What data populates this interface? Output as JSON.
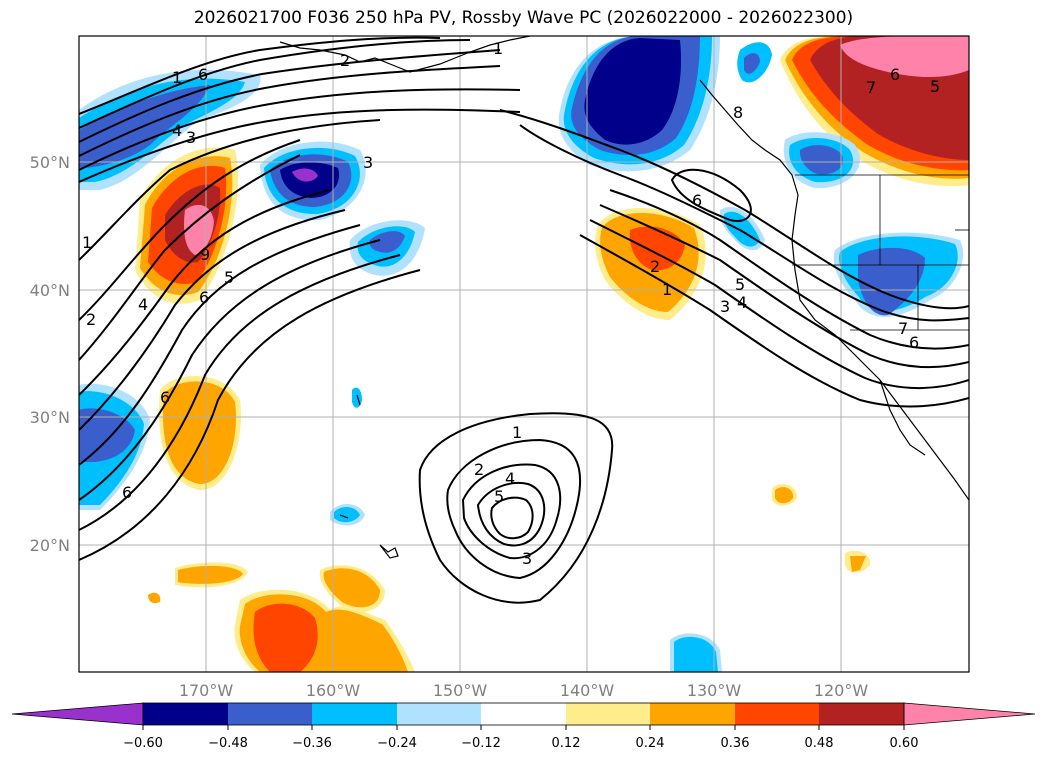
{
  "title": "2026021700 F036 250 hPa PV, Rossby Wave PC (2026022000 - 2026022300)",
  "lat_labels": [
    "50°N",
    "40°N",
    "30°N",
    "20°N"
  ],
  "lon_labels": [
    "170°W",
    "160°W",
    "150°W",
    "140°W",
    "130°W",
    "120°W"
  ],
  "colorbar": {
    "tick_labels": [
      "−0.60",
      "−0.48",
      "−0.36",
      "−0.24",
      "−0.12",
      "0.12",
      "0.24",
      "0.36",
      "0.48",
      "0.60"
    ],
    "colors": [
      "#9932cc",
      "#00008b",
      "#3a5fcd",
      "#00bfff",
      "#b0e2ff",
      "#ffffff",
      "#ffec8b",
      "#ffa500",
      "#ff4500",
      "#b22222",
      "#ff82ab"
    ]
  },
  "contour_labels": [
    "1",
    "6",
    "4",
    "3",
    "2",
    "1",
    "3",
    "1",
    "9",
    "5",
    "6",
    "4",
    "2",
    "6",
    "6",
    "8",
    "7",
    "6",
    "5",
    "6",
    "2",
    "1",
    "5",
    "3",
    "4",
    "7",
    "6",
    "1",
    "2",
    "4",
    "5",
    "3"
  ]
}
